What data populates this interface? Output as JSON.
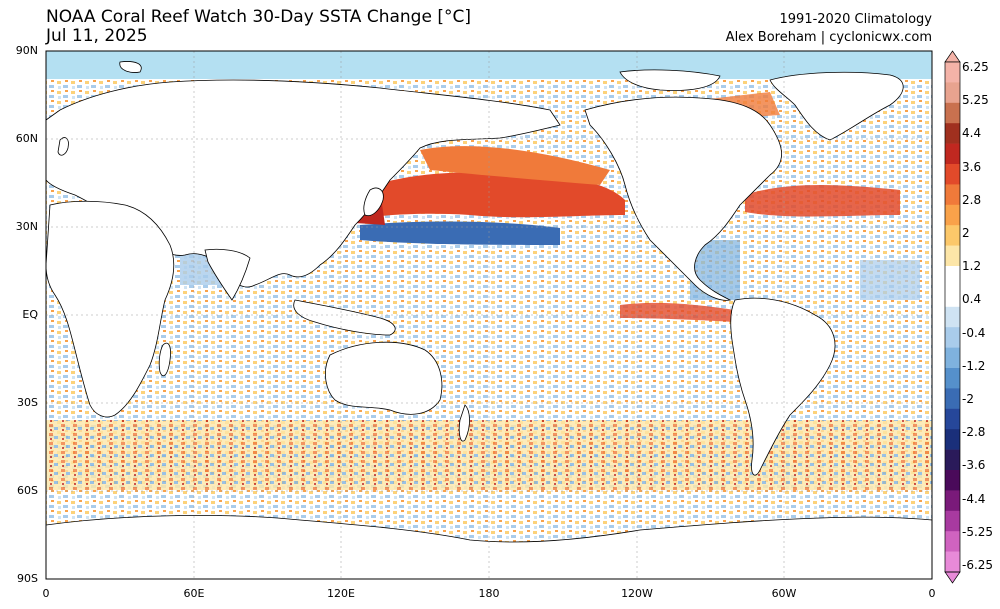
{
  "title": "NOAA Coral Reef Watch 30-Day SSTA Change [°C]",
  "date": "Jul 11, 2025",
  "climatology": "1991-2020 Climatology",
  "credit": "Alex Boreham | cyclonicwx.com",
  "lat_labels": [
    "90N",
    "60N",
    "30N",
    "EQ",
    "30S",
    "60S",
    "90S"
  ],
  "lon_labels": [
    "0",
    "60E",
    "120E",
    "180",
    "120W",
    "60W",
    "0"
  ],
  "colorbar": {
    "labels": [
      "6.25",
      "5.25",
      "4.4",
      "3.6",
      "2.8",
      "2",
      "1.2",
      "0.4",
      "-0.4",
      "-1.2",
      "-2",
      "-2.8",
      "-3.6",
      "-4.4",
      "-5.25",
      "-6.25"
    ],
    "colors": [
      "#f4b3a8",
      "#e8a38f",
      "#c9714f",
      "#a0301f",
      "#c02820",
      "#e24a2a",
      "#f07a3a",
      "#f9a24a",
      "#fcc86a",
      "#fde6a8",
      "#ffffff",
      "#ffffff",
      "#cfe3f3",
      "#a9cceb",
      "#7fb2de",
      "#5590cb",
      "#3a6cb4",
      "#26479a",
      "#1a2f7a",
      "#2a1a5a",
      "#4a0a5a",
      "#7a1a7a",
      "#a83aa0",
      "#d063c0",
      "#e88ad8"
    ]
  }
}
